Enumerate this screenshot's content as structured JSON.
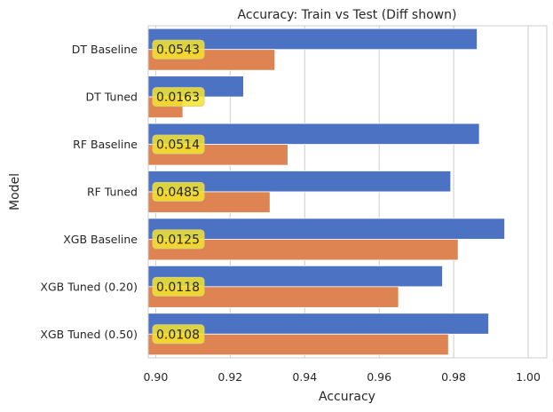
{
  "chart_data": {
    "type": "bar",
    "orientation": "horizontal",
    "title": "Accuracy: Train vs Test (Diff shown)",
    "xlabel": "Accuracy",
    "ylabel": "Model",
    "xlim": [
      0.898,
      1.005
    ],
    "xticks": [
      0.9,
      0.92,
      0.94,
      0.96,
      0.98,
      1.0
    ],
    "xtick_labels": [
      "0.90",
      "0.92",
      "0.94",
      "0.96",
      "0.98",
      "1.00"
    ],
    "grid": "vertical",
    "categories": [
      "DT Baseline",
      "DT Tuned",
      "RF Baseline",
      "RF Tuned",
      "XGB Baseline",
      "XGB Tuned (0.20)",
      "XGB Tuned (0.50)"
    ],
    "series": [
      {
        "color": "#4c72c4",
        "values": [
          0.9863,
          0.9236,
          0.9869,
          0.9792,
          0.9937,
          0.977,
          0.9894
        ]
      },
      {
        "color": "#dd8452",
        "values": [
          0.932,
          0.9073,
          0.9355,
          0.9307,
          0.9812,
          0.9652,
          0.9786
        ]
      }
    ],
    "annotations": {
      "background": "#f5e42b",
      "labels": [
        "0.0543",
        "0.0163",
        "0.0514",
        "0.0485",
        "0.0125",
        "0.0118",
        "0.0108"
      ]
    }
  }
}
